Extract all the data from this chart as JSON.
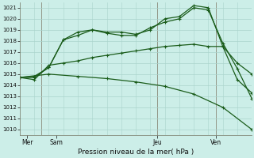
{
  "bg_color": "#cceee8",
  "grid_color": "#aad4cc",
  "line_color": "#1a5c1a",
  "title": "Pression niveau de la mer( hPa )",
  "ylim": [
    1009.5,
    1021.5
  ],
  "yticks": [
    1010,
    1011,
    1012,
    1013,
    1014,
    1015,
    1016,
    1017,
    1018,
    1019,
    1020,
    1021
  ],
  "xlim": [
    0,
    16
  ],
  "xtick_labels": [
    "Mer",
    "Sam",
    "Jeu",
    "Ven"
  ],
  "xtick_positions": [
    0.5,
    2.5,
    9.5,
    13.5
  ],
  "vline_positions": [
    1.5,
    9.5,
    13.5
  ],
  "series1": {
    "x": [
      0,
      1,
      2,
      3,
      4,
      5,
      6,
      7,
      8,
      9,
      10,
      11,
      12,
      13,
      14,
      15,
      16
    ],
    "y": [
      1014.7,
      1014.8,
      1015.6,
      1018.1,
      1018.8,
      1019.0,
      1018.8,
      1018.8,
      1018.6,
      1019.0,
      1020.0,
      1020.2,
      1021.2,
      1021.0,
      1017.5,
      1014.5,
      1013.3
    ]
  },
  "series2": {
    "x": [
      0,
      1,
      2,
      3,
      4,
      5,
      6,
      7,
      8,
      9,
      10,
      11,
      12,
      13,
      14,
      15,
      16
    ],
    "y": [
      1014.7,
      1014.7,
      1015.6,
      1018.1,
      1018.5,
      1019.0,
      1018.7,
      1018.5,
      1018.5,
      1019.2,
      1019.7,
      1020.0,
      1021.0,
      1020.8,
      1017.8,
      1015.5,
      1012.8
    ]
  },
  "series3": {
    "x": [
      0,
      1,
      2,
      3,
      4,
      5,
      6,
      7,
      8,
      9,
      10,
      11,
      12,
      13,
      14,
      15,
      16
    ],
    "y": [
      1014.7,
      1014.5,
      1015.8,
      1016.0,
      1016.2,
      1016.5,
      1016.7,
      1016.9,
      1017.1,
      1017.3,
      1017.5,
      1017.6,
      1017.7,
      1017.5,
      1017.5,
      1016.0,
      1015.0
    ]
  },
  "series4": {
    "x": [
      0,
      2,
      4,
      6,
      8,
      10,
      12,
      14,
      16
    ],
    "y": [
      1014.7,
      1015.0,
      1014.8,
      1014.6,
      1014.3,
      1013.9,
      1013.2,
      1012.0,
      1010.0
    ]
  }
}
